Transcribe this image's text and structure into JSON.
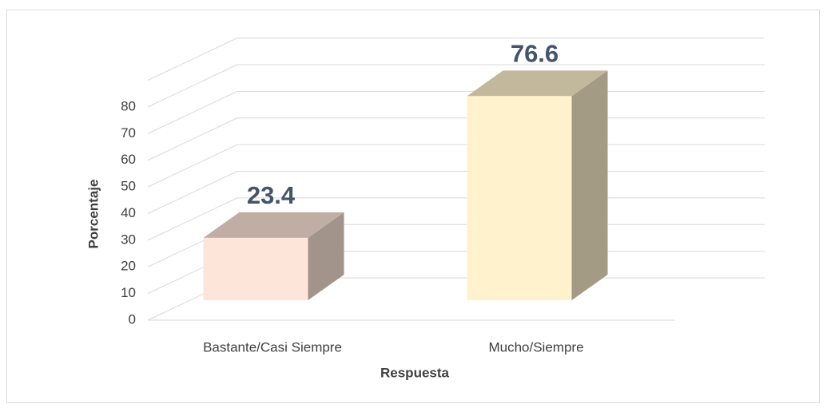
{
  "chart_data": {
    "type": "bar3d",
    "categories": [
      "Bastante/Casi Siempre",
      "Mucho/Siempre"
    ],
    "values": [
      23.4,
      76.6
    ],
    "colors": [
      "#fde5d9",
      "#fff2cc"
    ],
    "xlabel": "Respuesta",
    "ylabel": "Porcentaje",
    "ylim": [
      0,
      90
    ],
    "yticks": [
      0,
      10,
      20,
      30,
      40,
      50,
      60,
      70,
      80
    ],
    "grid": true
  }
}
